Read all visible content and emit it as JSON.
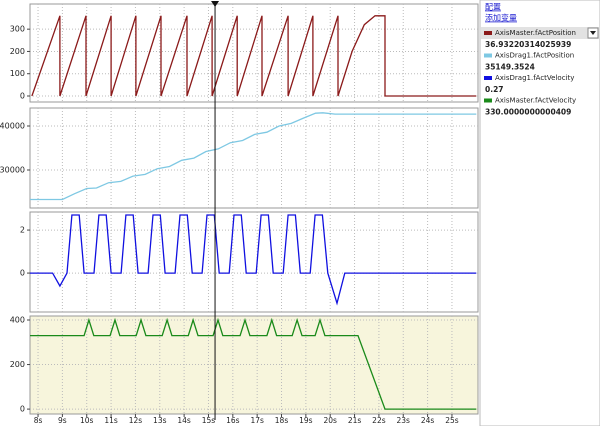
{
  "toolbar": {
    "links": [
      "配置",
      "添加变量"
    ]
  },
  "xaxis": {
    "xlim": [
      7.67,
      26.07
    ],
    "xticks": [
      {
        "value": 8,
        "label": "8s"
      },
      {
        "value": 9,
        "label": "9s"
      },
      {
        "value": 10,
        "label": "10s"
      },
      {
        "value": 11,
        "label": "11s"
      },
      {
        "value": 12,
        "label": "12s"
      },
      {
        "value": 13,
        "label": "13s"
      },
      {
        "value": 14,
        "label": "14s"
      },
      {
        "value": 15,
        "label": "15s"
      },
      {
        "value": 16,
        "label": "16s"
      },
      {
        "value": 17,
        "label": "17s"
      },
      {
        "value": 18,
        "label": "18s"
      },
      {
        "value": 19,
        "label": "19s"
      },
      {
        "value": 20,
        "label": "20s"
      },
      {
        "value": 21,
        "label": "21s"
      },
      {
        "value": 22,
        "label": "22s"
      },
      {
        "value": 23,
        "label": "23s"
      },
      {
        "value": 24,
        "label": "24s"
      },
      {
        "value": 25,
        "label": "25s"
      }
    ]
  },
  "cursor": {
    "x": 15.27,
    "values": [
      "36.93220314025939",
      "35149.3524",
      "0.27",
      "330.0000000000409"
    ]
  },
  "chart_data": [
    {
      "type": "line",
      "ylim": [
        -27,
        413
      ],
      "yticks": [
        0,
        100,
        200,
        300
      ],
      "grid": true,
      "background": "#ffffff",
      "series": [
        {
          "name": "AxisMaster.fActPosition",
          "color": "#8b1a1a",
          "x": [
            7.75,
            8.9,
            8.9,
            9.97,
            9.97,
            11.0,
            11.0,
            12.02,
            12.02,
            13.05,
            13.05,
            14.12,
            14.12,
            15.15,
            15.15,
            16.18,
            16.18,
            17.2,
            17.2,
            18.27,
            18.27,
            19.29,
            19.29,
            20.32,
            20.32,
            20.9,
            21.4,
            21.84,
            22.25,
            22.25,
            26.0
          ],
          "values": [
            0,
            360,
            0,
            360,
            0,
            360,
            0,
            360,
            0,
            360,
            0,
            360,
            0,
            360,
            0,
            360,
            0,
            360,
            0,
            360,
            0,
            360,
            0,
            360,
            0,
            200,
            320,
            360,
            360,
            0,
            0
          ]
        }
      ]
    },
    {
      "type": "line",
      "ylim": [
        21360,
        44090
      ],
      "yticks": [
        30000,
        40000
      ],
      "grid": true,
      "background": "#ffffff",
      "series": [
        {
          "name": "AxisDrag1.fActPosition",
          "color": "#7ec8e3",
          "x": [
            7.67,
            9.0,
            9.5,
            10.0,
            10.4,
            10.9,
            11.4,
            11.9,
            12.4,
            12.9,
            13.4,
            13.9,
            14.4,
            14.9,
            15.4,
            15.9,
            16.4,
            16.9,
            17.4,
            17.9,
            18.4,
            18.9,
            19.4,
            19.7,
            20.2,
            26.0
          ],
          "values": [
            23300,
            23300,
            24600,
            25800,
            25900,
            27100,
            27400,
            28600,
            29000,
            30300,
            30800,
            32200,
            32700,
            34200,
            34800,
            36200,
            36700,
            38100,
            38600,
            40000,
            40600,
            41800,
            42900,
            43000,
            42700,
            42700
          ]
        }
      ]
    },
    {
      "type": "line",
      "ylim": [
        -1.81,
        2.84
      ],
      "yticks": [
        0,
        2
      ],
      "grid": true,
      "background": "#ffffff",
      "series": [
        {
          "name": "AxisDrag1.fActVelocity",
          "color": "#1010e0",
          "x": [
            7.67,
            8.6,
            8.9,
            9.19,
            9.39,
            9.69,
            9.89,
            10.3,
            10.5,
            10.8,
            11.0,
            11.41,
            11.61,
            11.91,
            12.11,
            12.52,
            12.72,
            13.02,
            13.22,
            13.63,
            13.83,
            14.13,
            14.33,
            14.74,
            14.94,
            15.24,
            15.44,
            15.85,
            16.05,
            16.35,
            16.55,
            16.96,
            17.16,
            17.46,
            17.66,
            18.07,
            18.27,
            18.57,
            18.77,
            19.18,
            19.38,
            19.68,
            19.9,
            20.28,
            20.6,
            26.0
          ],
          "values": [
            0,
            0,
            -0.6,
            0,
            2.7,
            2.7,
            0,
            0,
            2.7,
            2.7,
            0,
            0,
            2.7,
            2.7,
            0,
            0,
            2.7,
            2.7,
            0,
            0,
            2.7,
            2.7,
            0,
            0,
            2.7,
            2.7,
            0,
            0,
            2.7,
            2.7,
            0,
            0,
            2.7,
            2.7,
            0,
            0,
            2.7,
            2.7,
            0,
            0,
            2.7,
            2.7,
            0,
            -1.4,
            0,
            0
          ]
        }
      ]
    },
    {
      "type": "line",
      "ylim": [
        -22,
        418
      ],
      "yticks": [
        0,
        200,
        400
      ],
      "grid": true,
      "background": "#f7f5dc",
      "series": [
        {
          "name": "AxisMaster.fActVelocity",
          "color": "#1a8a1a",
          "x": [
            7.67,
            9.89,
            10.09,
            10.29,
            10.96,
            11.16,
            11.36,
            12.03,
            12.23,
            12.43,
            13.1,
            13.3,
            13.5,
            14.17,
            14.37,
            14.57,
            15.19,
            15.39,
            15.59,
            16.3,
            16.5,
            16.7,
            17.4,
            17.6,
            17.8,
            18.44,
            18.64,
            18.84,
            19.38,
            19.58,
            19.78,
            21.14,
            22.25,
            26.0
          ],
          "values": [
            330,
            330,
            400,
            330,
            330,
            400,
            330,
            330,
            400,
            330,
            330,
            400,
            330,
            330,
            400,
            330,
            330,
            400,
            330,
            330,
            400,
            330,
            330,
            400,
            330,
            330,
            400,
            330,
            330,
            400,
            330,
            330,
            0,
            0
          ]
        }
      ]
    }
  ]
}
